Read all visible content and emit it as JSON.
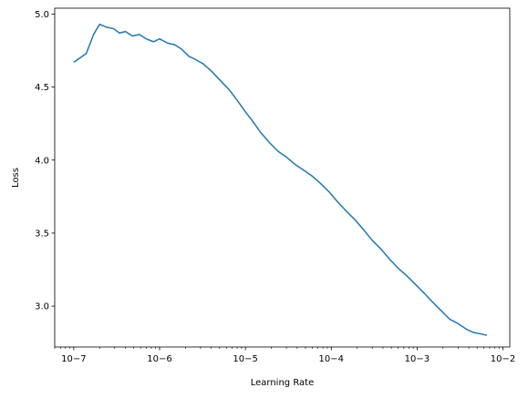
{
  "chart_data": {
    "type": "line",
    "title": "",
    "xlabel": "Learning Rate",
    "ylabel": "Loss",
    "x_scale": "log",
    "xlim": [
      6e-08,
      0.012
    ],
    "ylim": [
      2.72,
      5.04
    ],
    "grid": false,
    "legend": "none",
    "line_color": "#1f77b4",
    "x_ticks": [
      {
        "value": 1e-07,
        "label": "10−7"
      },
      {
        "value": 1e-06,
        "label": "10−6"
      },
      {
        "value": 1e-05,
        "label": "10−5"
      },
      {
        "value": 0.0001,
        "label": "10−4"
      },
      {
        "value": 0.001,
        "label": "10−3"
      },
      {
        "value": 0.01,
        "label": "10−2"
      }
    ],
    "y_ticks": [
      {
        "value": 3.0,
        "label": "3.0"
      },
      {
        "value": 3.5,
        "label": "3.5"
      },
      {
        "value": 4.0,
        "label": "4.0"
      },
      {
        "value": 4.5,
        "label": "4.5"
      },
      {
        "value": 5.0,
        "label": "5.0"
      }
    ],
    "series": [
      {
        "points": [
          [
            1e-07,
            4.67
          ],
          [
            1.4e-07,
            4.73
          ],
          [
            1.7e-07,
            4.86
          ],
          [
            2e-07,
            4.93
          ],
          [
            2.4e-07,
            4.91
          ],
          [
            2.9e-07,
            4.9
          ],
          [
            3.4e-07,
            4.87
          ],
          [
            4e-07,
            4.88
          ],
          [
            4.8e-07,
            4.85
          ],
          [
            5.8e-07,
            4.86
          ],
          [
            7e-07,
            4.83
          ],
          [
            8.5e-07,
            4.81
          ],
          [
            1e-06,
            4.83
          ],
          [
            1.25e-06,
            4.8
          ],
          [
            1.5e-06,
            4.79
          ],
          [
            1.8e-06,
            4.76
          ],
          [
            2.2e-06,
            4.71
          ],
          [
            2.6e-06,
            4.69
          ],
          [
            3.2e-06,
            4.66
          ],
          [
            4e-06,
            4.61
          ],
          [
            5e-06,
            4.55
          ],
          [
            6.5e-06,
            4.48
          ],
          [
            8e-06,
            4.41
          ],
          [
            1e-05,
            4.33
          ],
          [
            1.2e-05,
            4.27
          ],
          [
            1.5e-05,
            4.19
          ],
          [
            1.9e-05,
            4.12
          ],
          [
            2.4e-05,
            4.06
          ],
          [
            3e-05,
            4.02
          ],
          [
            3.8e-05,
            3.97
          ],
          [
            4.8e-05,
            3.93
          ],
          [
            6e-05,
            3.89
          ],
          [
            7.5e-05,
            3.84
          ],
          [
            9.5e-05,
            3.78
          ],
          [
            0.00012,
            3.71
          ],
          [
            0.00015,
            3.65
          ],
          [
            0.00019,
            3.59
          ],
          [
            0.00024,
            3.52
          ],
          [
            0.0003,
            3.45
          ],
          [
            0.00038,
            3.39
          ],
          [
            0.00048,
            3.32
          ],
          [
            0.0006,
            3.26
          ],
          [
            0.00075,
            3.21
          ],
          [
            0.00095,
            3.15
          ],
          [
            0.0012,
            3.09
          ],
          [
            0.0015,
            3.03
          ],
          [
            0.0019,
            2.97
          ],
          [
            0.0024,
            2.91
          ],
          [
            0.003,
            2.88
          ],
          [
            0.0038,
            2.84
          ],
          [
            0.0045,
            2.82
          ],
          [
            0.0055,
            2.81
          ],
          [
            0.0065,
            2.8
          ]
        ]
      }
    ]
  }
}
